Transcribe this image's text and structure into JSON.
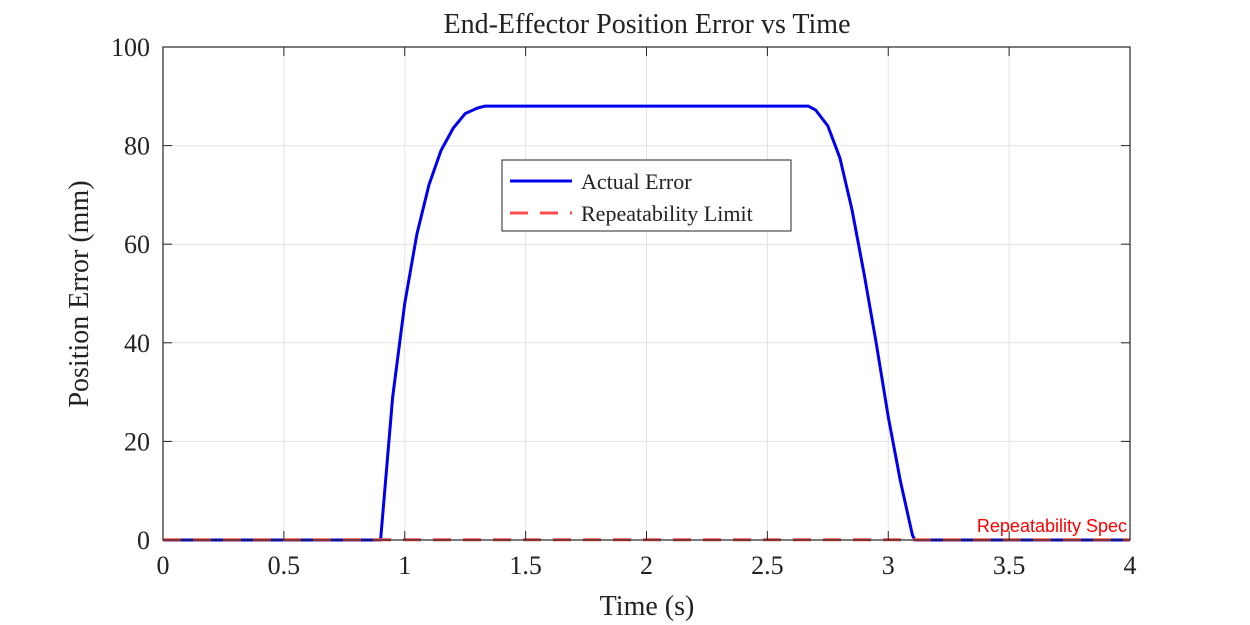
{
  "chart_data": {
    "type": "line",
    "title": "End-Effector Position Error vs Time",
    "xlabel": "Time (s)",
    "ylabel": "Position Error (mm)",
    "xlim": [
      0,
      4
    ],
    "ylim": [
      0,
      100
    ],
    "xticks": [
      0,
      0.5,
      1,
      1.5,
      2,
      2.5,
      3,
      3.5,
      4
    ],
    "xtick_labels": [
      "0",
      "0.5",
      "1",
      "1.5",
      "2",
      "2.5",
      "3",
      "3.5",
      "4"
    ],
    "yticks": [
      0,
      20,
      40,
      60,
      80,
      100
    ],
    "ytick_labels": [
      "0",
      "20",
      "40",
      "60",
      "80",
      "100"
    ],
    "grid": true,
    "legend_position": "upper-center",
    "series": [
      {
        "name": "Actual Error",
        "style": "solid",
        "color": "#0000ee",
        "x": [
          0,
          0.89,
          0.9,
          0.95,
          1.0,
          1.05,
          1.1,
          1.15,
          1.2,
          1.25,
          1.3,
          1.33,
          2.67,
          2.7,
          2.75,
          2.8,
          2.85,
          2.9,
          2.95,
          3.0,
          3.05,
          3.1,
          3.11,
          4.0
        ],
        "y": [
          0,
          0,
          0,
          29,
          48,
          62,
          72,
          79,
          83.5,
          86.5,
          87.6,
          88,
          88,
          87.2,
          84,
          77.5,
          67,
          54,
          40,
          25,
          12,
          1,
          0,
          0
        ]
      },
      {
        "name": "Repeatability Limit",
        "style": "dashed",
        "color": "#ff4d4d",
        "x": [
          0,
          4
        ],
        "y": [
          0.05,
          0.05
        ]
      }
    ],
    "annotations": [
      {
        "text": "Repeatability Spec",
        "x": 4.0,
        "y": 0.05,
        "color": "#ff0000"
      }
    ]
  }
}
